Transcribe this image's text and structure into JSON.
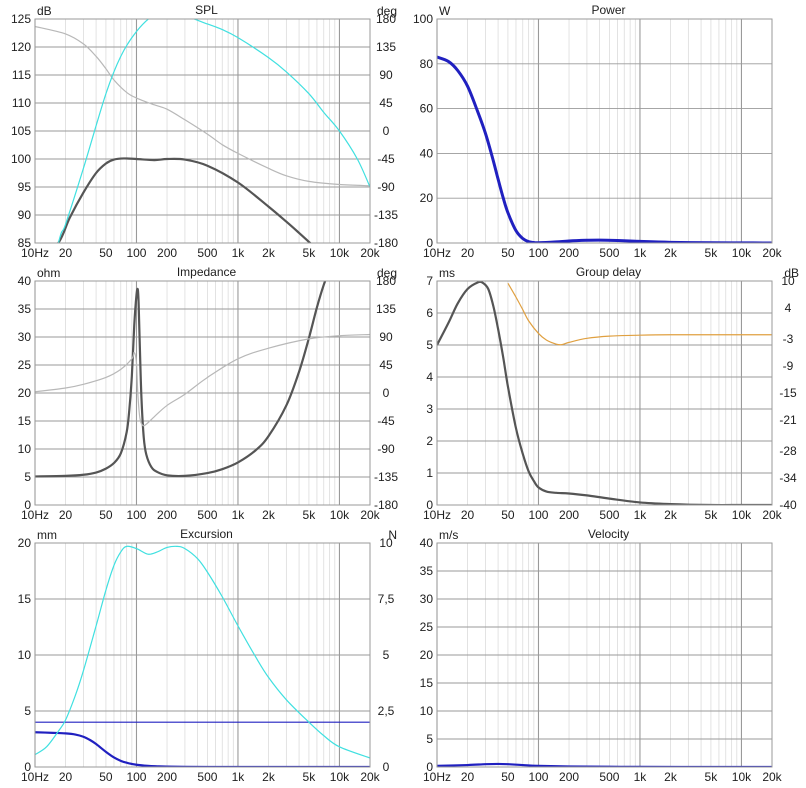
{
  "x_ticks": [
    "10Hz",
    "20",
    "50",
    "100",
    "200",
    "500",
    "1k",
    "2k",
    "5k",
    "10k",
    "20k"
  ],
  "x_tick_values": [
    10,
    20,
    50,
    100,
    200,
    500,
    1000,
    2000,
    5000,
    10000,
    20000
  ],
  "chart_data": [
    {
      "type": "line",
      "title": "SPL",
      "left_unit": "dB",
      "right_unit": "deg",
      "xscale": "log",
      "xlim": [
        10,
        20000
      ],
      "left_ylim": [
        85,
        125
      ],
      "left_yticks": [
        "85",
        "90",
        "95",
        "100",
        "105",
        "110",
        "115",
        "120",
        "125"
      ],
      "left_ytick_values": [
        85,
        90,
        95,
        100,
        105,
        110,
        115,
        120,
        125
      ],
      "right_ylim": [
        -180,
        180
      ],
      "right_yticks": [
        "-180",
        "-135",
        "-90",
        "-45",
        "0",
        "45",
        "90",
        "135",
        "180"
      ],
      "right_ytick_values": [
        -180,
        -135,
        -90,
        -45,
        0,
        45,
        90,
        135,
        180
      ],
      "grid": true,
      "series": [
        {
          "axis": "left",
          "color": "#555555",
          "width": 2.2,
          "x": [
            10,
            17,
            22,
            30,
            40,
            50,
            60,
            75,
            100,
            150,
            200,
            300,
            500,
            1000,
            2000,
            3000,
            4000,
            5000,
            6500
          ],
          "y": [
            80,
            85,
            89.5,
            94,
            97.5,
            99.2,
            99.9,
            100.1,
            100.0,
            99.8,
            100.0,
            99.9,
            98.8,
            95.8,
            91.5,
            88.8,
            86.8,
            85.2,
            83.3
          ]
        },
        {
          "axis": "right",
          "color": "#b8b8b8",
          "width": 1.2,
          "x": [
            10,
            20,
            30,
            40,
            50,
            60,
            80,
            100,
            150,
            200,
            300,
            500,
            700,
            1000,
            2000,
            3000,
            5000,
            10000,
            20000
          ],
          "y": [
            168,
            156,
            140,
            120,
            100,
            82,
            62,
            53,
            42,
            35,
            18,
            -5,
            -22,
            -36,
            -60,
            -72,
            -81,
            -86,
            -88
          ]
        },
        {
          "axis": "right",
          "color": "#40e0e0",
          "width": 1.2,
          "x": [
            10,
            17,
            20,
            30,
            50,
            70,
            100,
            150,
            200,
            300,
            500,
            700,
            1000,
            2000,
            3000,
            5000,
            7000,
            10000,
            15000,
            20000
          ],
          "y": [
            -340,
            -180,
            -150,
            -60,
            60,
            120,
            160,
            187,
            190,
            185,
            172,
            163,
            150,
            118,
            95,
            60,
            30,
            0,
            -45,
            -90
          ]
        }
      ]
    },
    {
      "type": "line",
      "title": "Power",
      "left_unit": "W",
      "right_unit": "",
      "xscale": "log",
      "xlim": [
        10,
        20000
      ],
      "left_ylim": [
        0,
        100
      ],
      "left_yticks": [
        "0",
        "20",
        "40",
        "60",
        "80",
        "100"
      ],
      "left_ytick_values": [
        0,
        20,
        40,
        60,
        80,
        100
      ],
      "grid": true,
      "series": [
        {
          "axis": "left",
          "color": "#2020c0",
          "width": 3,
          "x": [
            10,
            13,
            16,
            20,
            25,
            30,
            35,
            40,
            45,
            50,
            60,
            70,
            80,
            90,
            100,
            150,
            200,
            300,
            400,
            600,
            1000,
            2000,
            5000,
            10000,
            20000
          ],
          "y": [
            83,
            81,
            77,
            70,
            59,
            49,
            38.5,
            28.5,
            20,
            13.5,
            5.5,
            2,
            0.6,
            0.2,
            0.1,
            0.5,
            0.9,
            1.2,
            1.3,
            1.1,
            0.7,
            0.3,
            0.1,
            0.05,
            0.02
          ]
        }
      ]
    },
    {
      "type": "line",
      "title": "Impedance",
      "left_unit": "ohm",
      "right_unit": "deg",
      "xscale": "log",
      "xlim": [
        10,
        20000
      ],
      "left_ylim": [
        0,
        40
      ],
      "left_yticks": [
        "0",
        "5",
        "10",
        "15",
        "20",
        "25",
        "30",
        "35",
        "40"
      ],
      "left_ytick_values": [
        0,
        5,
        10,
        15,
        20,
        25,
        30,
        35,
        40
      ],
      "right_ylim": [
        -180,
        180
      ],
      "right_yticks": [
        "-180",
        "-135",
        "-90",
        "-45",
        "0",
        "45",
        "90",
        "135",
        "180"
      ],
      "right_ytick_values": [
        -180,
        -135,
        -90,
        -45,
        0,
        45,
        90,
        135,
        180
      ],
      "grid": true,
      "series": [
        {
          "axis": "left",
          "color": "#555555",
          "width": 2.2,
          "x": [
            10,
            20,
            30,
            40,
            50,
            60,
            70,
            80,
            85,
            90,
            95,
            100,
            103,
            105,
            108,
            112,
            118,
            125,
            140,
            160,
            200,
            300,
            500,
            700,
            1000,
            1500,
            2000,
            3000,
            4000,
            5000,
            6000,
            7000,
            8000
          ],
          "y": [
            5.1,
            5.2,
            5.4,
            5.8,
            6.5,
            7.5,
            9.2,
            13,
            17,
            23,
            32,
            37.5,
            38.5,
            36,
            28,
            19,
            12,
            9,
            6.8,
            5.9,
            5.3,
            5.2,
            5.7,
            6.4,
            7.6,
            9.8,
            12.3,
            17.8,
            23.8,
            29.8,
            35.3,
            39.3,
            42
          ]
        },
        {
          "axis": "right",
          "color": "#b8b8b8",
          "width": 1.2,
          "x": [
            10,
            20,
            30,
            50,
            70,
            90,
            95,
            100,
            103,
            108,
            115,
            125,
            150,
            200,
            300,
            500,
            1000,
            2000,
            5000,
            10000,
            20000
          ],
          "y": [
            2,
            8,
            14,
            25,
            38,
            55,
            65,
            48,
            0,
            -40,
            -52,
            -50,
            -38,
            -20,
            -2,
            25,
            55,
            72,
            87,
            92,
            94
          ]
        }
      ]
    },
    {
      "type": "line",
      "title": "Group delay",
      "left_unit": "ms",
      "right_unit": "dB",
      "xscale": "log",
      "xlim": [
        10,
        20000
      ],
      "left_ylim": [
        0,
        7
      ],
      "left_yticks": [
        "0",
        "1",
        "2",
        "3",
        "4",
        "5",
        "6",
        "7"
      ],
      "left_ytick_values": [
        0,
        1,
        2,
        3,
        4,
        5,
        6,
        7
      ],
      "right_ylim": [
        -40,
        10
      ],
      "right_yticks": [
        "-40",
        "-34",
        "-28",
        "-21",
        "-15",
        "-9",
        "-3",
        "4",
        "10"
      ],
      "right_ytick_values": [
        -40,
        -34,
        -28,
        -21,
        -15,
        -9,
        -3,
        4,
        10
      ],
      "grid": true,
      "series": [
        {
          "axis": "left",
          "color": "#555555",
          "width": 2.2,
          "x": [
            10,
            13,
            16,
            20,
            25,
            28,
            32,
            36,
            40,
            45,
            50,
            60,
            70,
            80,
            90,
            100,
            120,
            150,
            200,
            300,
            500,
            1000,
            2000,
            5000,
            10000,
            20000
          ],
          "y": [
            5.0,
            5.7,
            6.3,
            6.75,
            6.95,
            6.95,
            6.75,
            6.2,
            5.5,
            4.6,
            3.7,
            2.4,
            1.6,
            1.05,
            0.75,
            0.55,
            0.42,
            0.38,
            0.36,
            0.3,
            0.2,
            0.08,
            0.03,
            0.0,
            0.0,
            0.0
          ]
        },
        {
          "axis": "right",
          "color": "#e0a040",
          "width": 1.2,
          "x": [
            50,
            60,
            70,
            80,
            100,
            120,
            150,
            170,
            200,
            300,
            500,
            1000,
            2000,
            5000,
            10000,
            20000
          ],
          "y": [
            9.5,
            6.4,
            3.6,
            1.1,
            -1.7,
            -3.2,
            -4.1,
            -4.2,
            -3.7,
            -2.8,
            -2.3,
            -2.1,
            -2.0,
            -2.0,
            -2.0,
            -2.0
          ]
        }
      ]
    },
    {
      "type": "line",
      "title": "Excursion",
      "left_unit": "mm",
      "right_unit": "N",
      "xscale": "log",
      "xlim": [
        10,
        20000
      ],
      "left_ylim": [
        0,
        20
      ],
      "left_yticks": [
        "0",
        "5",
        "10",
        "15",
        "20"
      ],
      "left_ytick_values": [
        0,
        5,
        10,
        15,
        20
      ],
      "right_ylim": [
        0,
        10
      ],
      "right_yticks": [
        "0",
        "2,5",
        "5",
        "7,5",
        "10"
      ],
      "right_ytick_values": [
        0,
        2.5,
        5,
        7.5,
        10
      ],
      "grid": true,
      "series": [
        {
          "axis": "left",
          "color": "#2020c0",
          "width": 2.2,
          "x": [
            10,
            15,
            20,
            25,
            30,
            35,
            40,
            50,
            60,
            70,
            80,
            100,
            130,
            160,
            200,
            300,
            500,
            1000,
            2000,
            5000,
            10000,
            20000
          ],
          "y": [
            3.1,
            3.05,
            3.0,
            2.9,
            2.7,
            2.4,
            2.05,
            1.35,
            0.85,
            0.55,
            0.38,
            0.2,
            0.1,
            0.06,
            0.03,
            0.01,
            0.0,
            0.0,
            0.0,
            0.0,
            0.0,
            0.0
          ]
        },
        {
          "axis": "left",
          "color": "#2020c0",
          "width": 1.2,
          "x": [
            10,
            20000
          ],
          "y": [
            4,
            4
          ]
        },
        {
          "axis": "right",
          "color": "#40e0e0",
          "width": 1.2,
          "x": [
            10,
            13,
            17,
            20,
            25,
            30,
            40,
            50,
            60,
            70,
            80,
            100,
            130,
            160,
            200,
            250,
            300,
            400,
            500,
            700,
            1000,
            1500,
            2000,
            3000,
            5000,
            7000,
            10000,
            20000
          ],
          "y": [
            0.55,
            0.9,
            1.6,
            2.1,
            3.2,
            4.3,
            6.3,
            7.9,
            9.0,
            9.6,
            9.85,
            9.75,
            9.5,
            9.6,
            9.8,
            9.85,
            9.75,
            9.3,
            8.7,
            7.6,
            6.3,
            4.9,
            4.0,
            3.0,
            2.0,
            1.4,
            0.9,
            0.4
          ]
        }
      ]
    },
    {
      "type": "line",
      "title": "Velocity",
      "left_unit": "m/s",
      "right_unit": "",
      "xscale": "log",
      "xlim": [
        10,
        20000
      ],
      "left_ylim": [
        0,
        40
      ],
      "left_yticks": [
        "0",
        "5",
        "10",
        "15",
        "20",
        "25",
        "30",
        "35",
        "40"
      ],
      "left_ytick_values": [
        0,
        5,
        10,
        15,
        20,
        25,
        30,
        35,
        40
      ],
      "grid": true,
      "series": [
        {
          "axis": "left",
          "color": "#2020c0",
          "width": 2.2,
          "x": [
            10,
            20,
            30,
            40,
            50,
            70,
            100,
            200,
            500,
            1000,
            5000,
            20000
          ],
          "y": [
            0.2,
            0.35,
            0.5,
            0.55,
            0.5,
            0.35,
            0.2,
            0.1,
            0.05,
            0.02,
            0.01,
            0.0
          ]
        }
      ]
    }
  ]
}
